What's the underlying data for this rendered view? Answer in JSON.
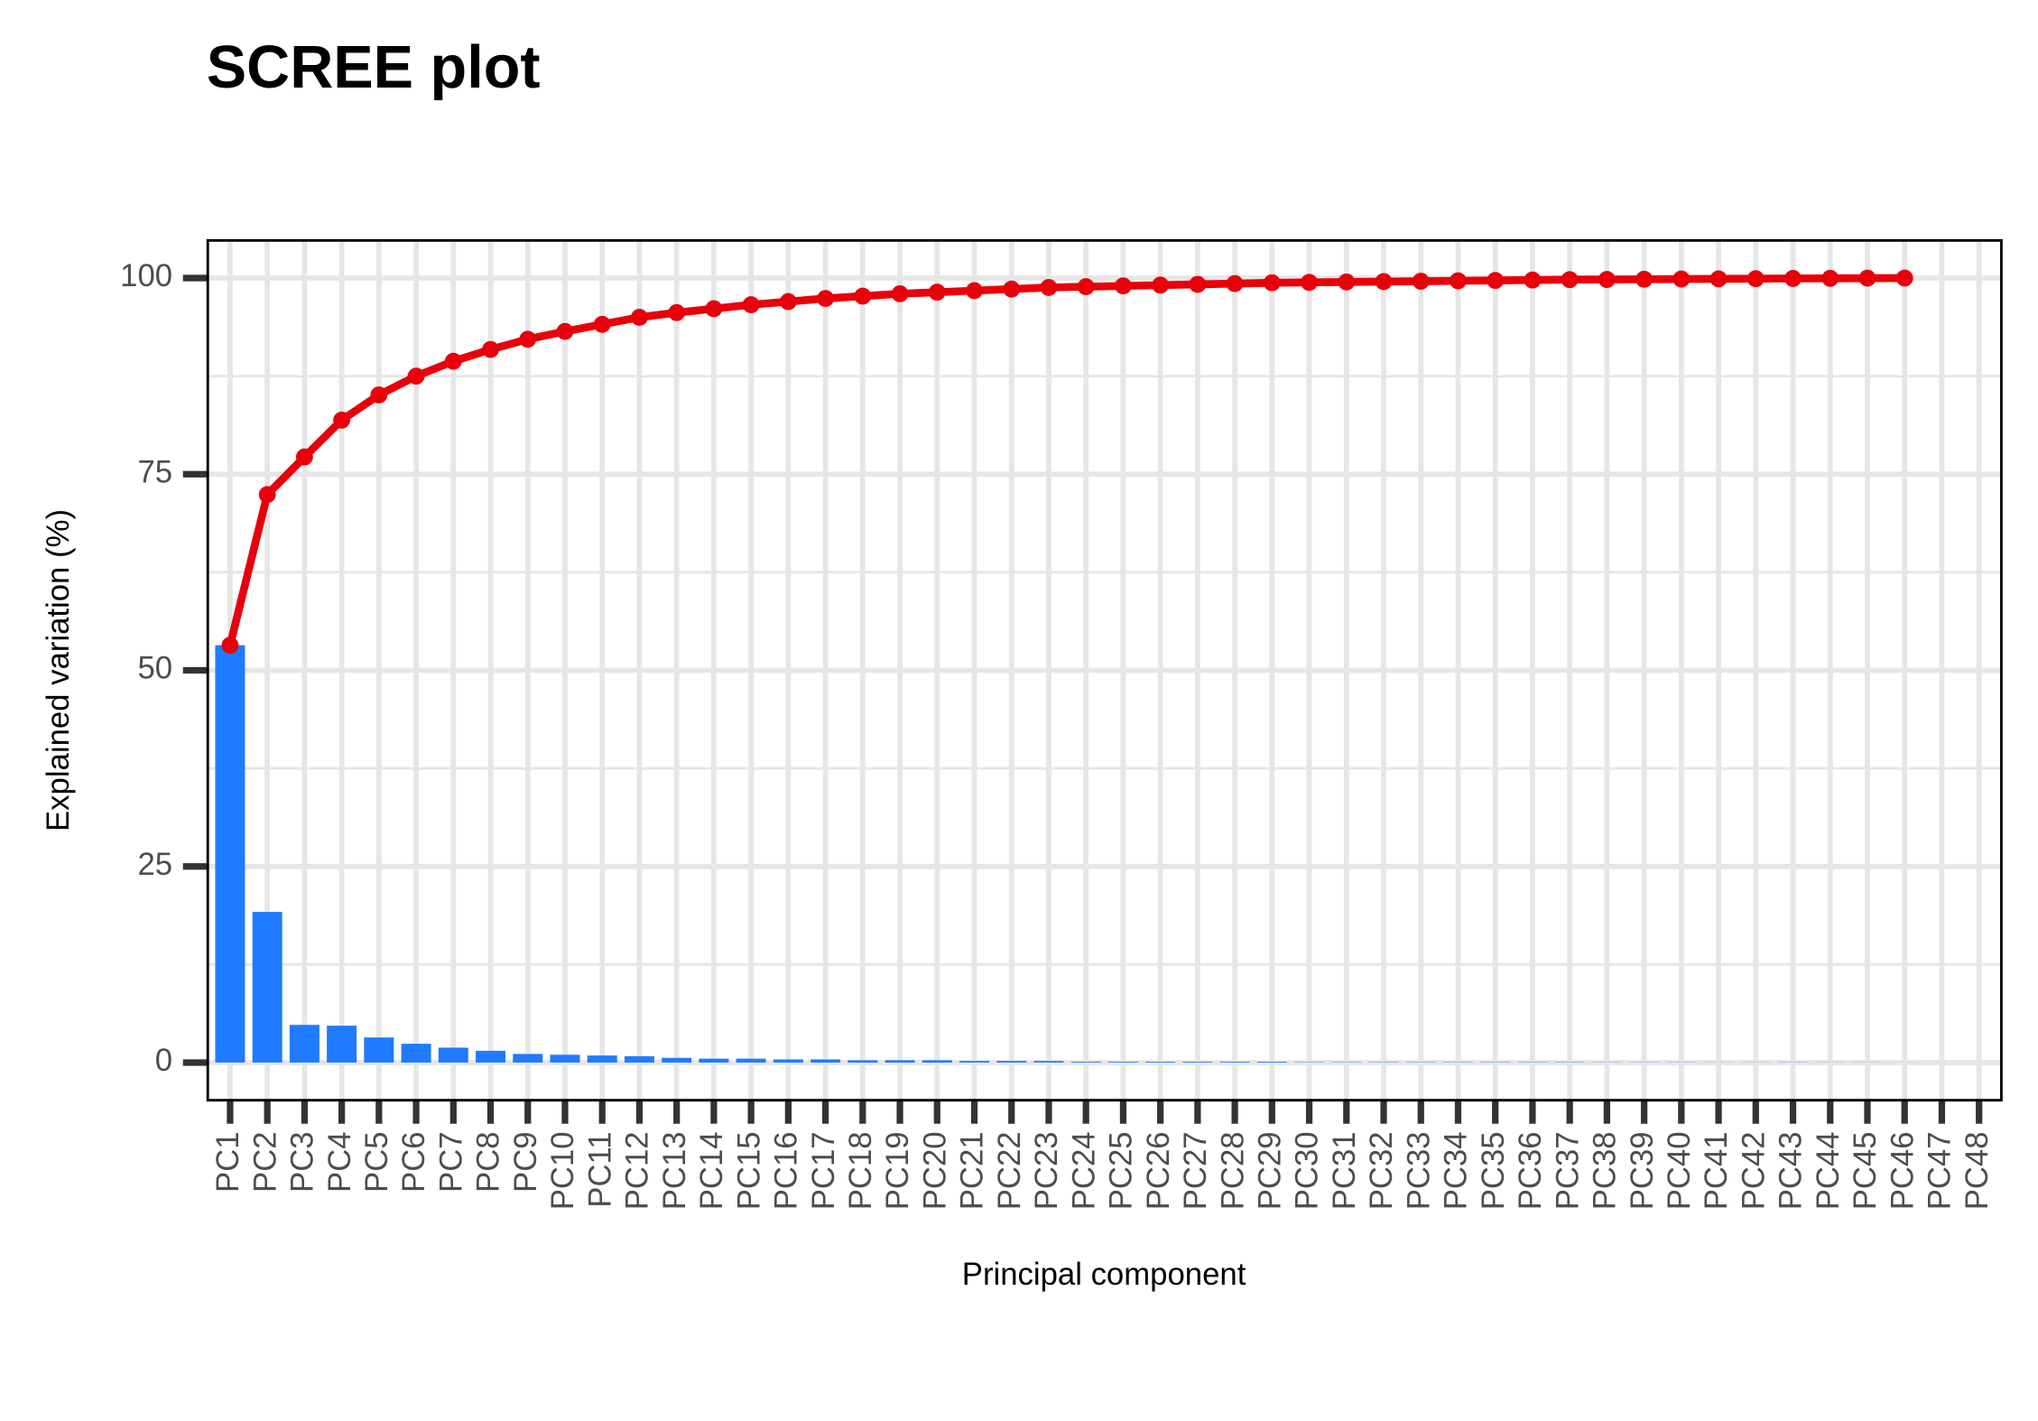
{
  "chart_data": {
    "type": "bar",
    "title": "SCREE plot",
    "x_label": "Principal component",
    "y_label": "Explained variation (%)",
    "categories": [
      "PC1",
      "PC2",
      "PC3",
      "PC4",
      "PC5",
      "PC6",
      "PC7",
      "PC8",
      "PC9",
      "PC10",
      "PC11",
      "PC12",
      "PC13",
      "PC14",
      "PC15",
      "PC16",
      "PC17",
      "PC18",
      "PC19",
      "PC20",
      "PC21",
      "PC22",
      "PC23",
      "PC24",
      "PC25",
      "PC26",
      "PC27",
      "PC28",
      "PC29",
      "PC30",
      "PC31",
      "PC32",
      "PC33",
      "PC34",
      "PC35",
      "PC36",
      "PC37",
      "PC38",
      "PC39",
      "PC40",
      "PC41",
      "PC42",
      "PC43",
      "PC44",
      "PC45",
      "PC46",
      "PC47",
      "PC48"
    ],
    "series": [
      {
        "type": "bar",
        "color": "#1f7bff",
        "values": [
          53.2,
          19.2,
          4.8,
          4.7,
          3.2,
          2.4,
          1.9,
          1.5,
          1.1,
          1.0,
          0.9,
          0.8,
          0.6,
          0.5,
          0.5,
          0.4,
          0.4,
          0.3,
          0.3,
          0.3,
          0.2,
          0.2,
          0.2,
          0.1,
          0.1,
          0.1,
          0.1,
          0.1,
          0.1,
          0.05,
          0.05,
          0.05,
          0.05,
          0.05,
          0.05,
          0.05,
          0.05,
          0.03,
          0.03,
          0.03,
          0.02,
          0.02,
          0.03,
          0.02,
          0.02,
          0.01,
          null,
          null
        ]
      },
      {
        "type": "line",
        "color": "#e8000b",
        "values": [
          53.2,
          72.4,
          77.2,
          81.9,
          85.1,
          87.5,
          89.4,
          90.9,
          92.2,
          93.2,
          94.1,
          95.0,
          95.6,
          96.1,
          96.6,
          97.0,
          97.4,
          97.7,
          98.0,
          98.2,
          98.4,
          98.6,
          98.8,
          98.9,
          99.0,
          99.1,
          99.2,
          99.3,
          99.4,
          99.45,
          99.5,
          99.55,
          99.6,
          99.65,
          99.7,
          99.75,
          99.8,
          99.82,
          99.85,
          99.88,
          99.9,
          99.92,
          99.95,
          99.97,
          99.99,
          100,
          null,
          null
        ]
      }
    ],
    "ylim": [
      -4.8,
      104.8
    ],
    "yticks": [
      0,
      25,
      50,
      75,
      100
    ],
    "y_minor_ticks": [
      12.5,
      37.5,
      62.5,
      87.5
    ],
    "grid": true
  }
}
